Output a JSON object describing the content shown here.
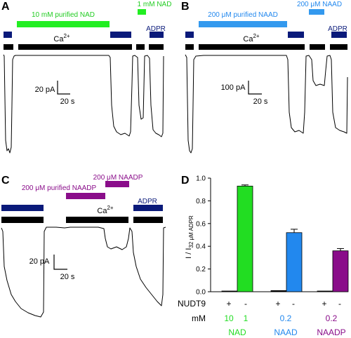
{
  "panel_A": {
    "label": "A",
    "green_bar_label": "10 mM purified NAD",
    "green_small_label": "1 mM NAD",
    "ca_label": "Ca",
    "ca_superscript": "2+",
    "adpr_label": "ADPR",
    "scale_y": "20 pA",
    "scale_x": "20 s"
  },
  "panel_B": {
    "label": "B",
    "blue_bar_label": "200 μM purified NAAD",
    "blue_small_label": "200 μM NAAD",
    "ca_label": "Ca",
    "ca_superscript": "2+",
    "adpr_label": "ADPR",
    "scale_y": "100 pA",
    "scale_x": "20 s"
  },
  "panel_C": {
    "label": "C",
    "purple_small_label": "200 μM NAADP",
    "purple_bar_label": "200 μM purified NAADP",
    "ca_label": "Ca",
    "ca_superscript": "2+",
    "adpr_label": "ADPR",
    "scale_y": "20 pA",
    "scale_x": "20 s"
  },
  "panel_D": {
    "label": "D",
    "ylabel_main": "I / I",
    "ylabel_sub": "32 μM ADPR",
    "nudt9_label": "NUDT9",
    "mm_label": "mM",
    "plus": "+",
    "minus": "-",
    "group_names": [
      "NAD",
      "NAAD",
      "NAADP"
    ],
    "group_conc": [
      "10",
      "1",
      "0.2",
      "0.2"
    ],
    "colors": {
      "nad": "#22dd22",
      "naad": "#2288ee",
      "naadp": "#8a0d8a"
    }
  },
  "chart_data": {
    "type": "bar",
    "categories": [
      "NAD +NUDT9",
      "NAD -NUDT9",
      "NAAD +NUDT9",
      "NAAD -NUDT9",
      "NAADP +NUDT9",
      "NAADP -NUDT9"
    ],
    "values": [
      0.0,
      0.93,
      0.01,
      0.52,
      0.005,
      0.36
    ],
    "errors": [
      0,
      0.01,
      0,
      0.03,
      0,
      0.02
    ],
    "ylim": [
      0,
      1.0
    ],
    "yticks": [
      "0.0",
      "0.2",
      "0.4",
      "0.6",
      "0.8",
      "1.0"
    ]
  }
}
